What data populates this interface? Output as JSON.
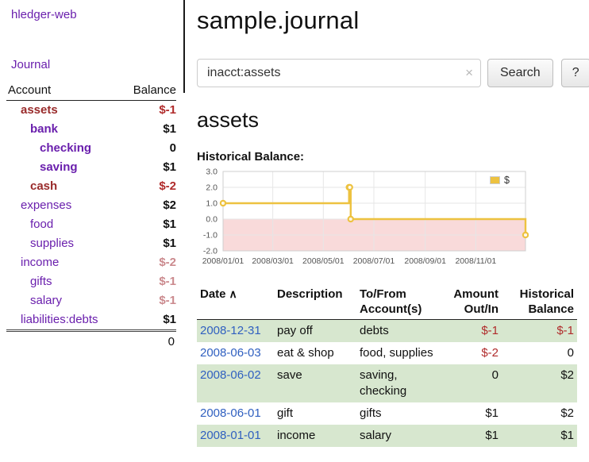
{
  "header": {
    "title": "sample.journal"
  },
  "sidebar": {
    "app_title": "hledger-web",
    "nav_journal": "Journal",
    "accounts_table": {
      "headers": {
        "account": "Account",
        "balance": "Balance"
      },
      "rows": [
        {
          "name": "assets",
          "indent": 0,
          "emphasis": true,
          "name_color": "maroon",
          "balance": "$-1",
          "balance_tone": "negative"
        },
        {
          "name": "bank",
          "indent": 1,
          "emphasis": true,
          "name_color": "purple",
          "balance": "$1",
          "balance_tone": "normal"
        },
        {
          "name": "checking",
          "indent": 2,
          "emphasis": true,
          "name_color": "purple",
          "balance": "0",
          "balance_tone": "normal"
        },
        {
          "name": "saving",
          "indent": 2,
          "emphasis": true,
          "name_color": "purple",
          "balance": "$1",
          "balance_tone": "normal"
        },
        {
          "name": "cash",
          "indent": 1,
          "emphasis": true,
          "name_color": "maroon",
          "balance": "$-2",
          "balance_tone": "negative"
        },
        {
          "name": "expenses",
          "indent": 0,
          "emphasis": false,
          "name_color": "purple",
          "balance": "$2",
          "balance_tone": "normal"
        },
        {
          "name": "food",
          "indent": 1,
          "emphasis": false,
          "name_color": "purple",
          "balance": "$1",
          "balance_tone": "normal"
        },
        {
          "name": "supplies",
          "indent": 1,
          "emphasis": false,
          "name_color": "purple",
          "balance": "$1",
          "balance_tone": "normal"
        },
        {
          "name": "income",
          "indent": 0,
          "emphasis": false,
          "name_color": "purple",
          "balance": "$-2",
          "balance_tone": "negative-muted"
        },
        {
          "name": "gifts",
          "indent": 1,
          "emphasis": false,
          "name_color": "purple",
          "balance": "$-1",
          "balance_tone": "negative-muted"
        },
        {
          "name": "salary",
          "indent": 1,
          "emphasis": false,
          "name_color": "purple",
          "balance": "$-1",
          "balance_tone": "negative-muted"
        },
        {
          "name": "liabilities:debts",
          "indent": 0,
          "emphasis": false,
          "name_color": "purple",
          "balance": "$1",
          "balance_tone": "normal"
        }
      ],
      "total": "0"
    }
  },
  "search": {
    "value": "inacct:assets",
    "clear_icon": "×",
    "button_label": "Search",
    "help_label": "?"
  },
  "main": {
    "account_heading": "assets"
  },
  "chart_data": {
    "type": "line",
    "step": true,
    "title": "Historical Balance:",
    "series": [
      {
        "name": "$",
        "color": "#edc240",
        "points": [
          [
            "2008-01-01",
            1
          ],
          [
            "2008-06-01",
            2
          ],
          [
            "2008-06-02",
            2
          ],
          [
            "2008-06-03",
            0
          ],
          [
            "2008-12-31",
            -1
          ]
        ]
      }
    ],
    "x_range": [
      "2008-01-01",
      "2008-12-31"
    ],
    "x_ticks": [
      {
        "date": "2008-01-01",
        "label": "2008/01/01"
      },
      {
        "date": "2008-03-01",
        "label": "2008/03/01"
      },
      {
        "date": "2008-05-01",
        "label": "2008/05/01"
      },
      {
        "date": "2008-07-01",
        "label": "2008/07/01"
      },
      {
        "date": "2008-09-01",
        "label": "2008/09/01"
      },
      {
        "date": "2008-11-01",
        "label": "2008/11/01"
      }
    ],
    "y_ticks": [
      3,
      2,
      1,
      0,
      -1,
      -2
    ],
    "ylim": [
      -2,
      3
    ],
    "grid": true,
    "legend": {
      "position": "top-right",
      "label": "$"
    },
    "negative_region_fill": "#f9dada"
  },
  "register": {
    "headers": {
      "date": "Date",
      "description": "Description",
      "accounts": "To/From Account(s)",
      "amount": "Amount Out/In",
      "balance": "Historical Balance"
    },
    "sort_icon": "∧",
    "rows": [
      {
        "date": "2008-12-31",
        "description": "pay off",
        "accounts": "debts",
        "amount": "$-1",
        "amount_negative": true,
        "balance": "$-1",
        "balance_negative": true
      },
      {
        "date": "2008-06-03",
        "description": "eat & shop",
        "accounts": "food, supplies",
        "amount": "$-2",
        "amount_negative": true,
        "balance": "0",
        "balance_negative": false
      },
      {
        "date": "2008-06-02",
        "description": "save",
        "accounts": "saving, checking",
        "amount": "0",
        "amount_negative": false,
        "balance": "$2",
        "balance_negative": false
      },
      {
        "date": "2008-06-01",
        "description": "gift",
        "accounts": "gifts",
        "amount": "$1",
        "amount_negative": false,
        "balance": "$2",
        "balance_negative": false
      },
      {
        "date": "2008-01-01",
        "description": "income",
        "accounts": "salary",
        "amount": "$1",
        "amount_negative": false,
        "balance": "$1",
        "balance_negative": false
      }
    ]
  },
  "colors": {
    "purple": "#6a1fad",
    "maroon": "#992b2b",
    "negative": "#b02b2b",
    "negative_muted": "#cb8a8e",
    "link_blue": "#3060c0",
    "stripe_green": "#d7e7cf",
    "chart_line": "#edc240"
  }
}
